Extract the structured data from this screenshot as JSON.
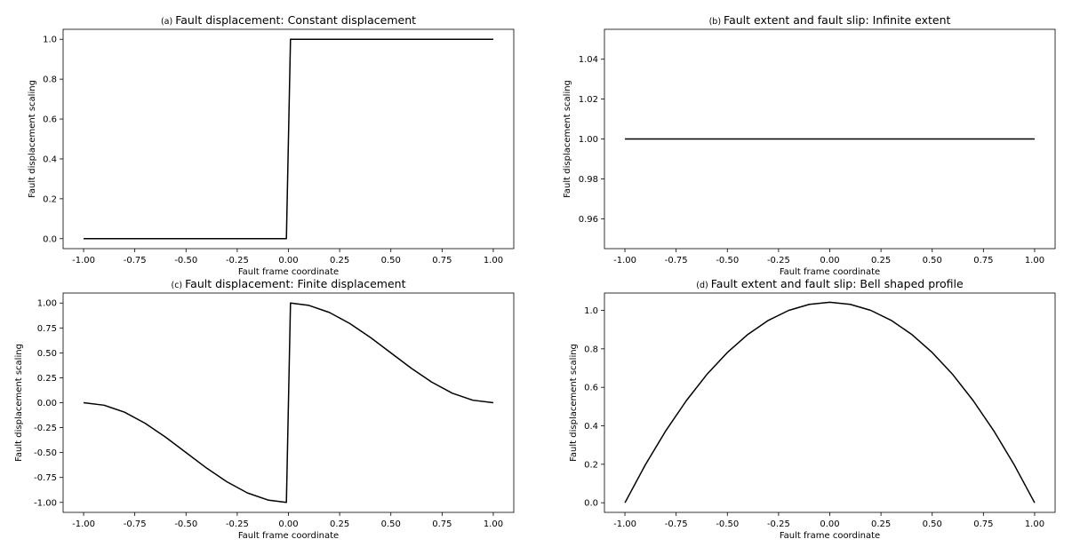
{
  "chart_data": [
    {
      "panel": "a",
      "type": "line",
      "title_letter": "(a)",
      "title": "Fault displacement: Constant displacement",
      "xlabel": "Fault frame coordinate",
      "ylabel": "Fault displacement scaling",
      "xlim": [
        -1.1,
        1.1
      ],
      "ylim": [
        -0.05,
        1.05
      ],
      "xticks": [
        "-1.00",
        "-0.75",
        "-0.50",
        "-0.25",
        "0.00",
        "0.25",
        "0.50",
        "0.75",
        "1.00"
      ],
      "yticks": [
        "0.0",
        "0.2",
        "0.4",
        "0.6",
        "0.8",
        "1.0"
      ],
      "series": [
        {
          "color": "#000000",
          "points": [
            [
              -1.0,
              0.0
            ],
            [
              -0.01,
              0.0
            ],
            [
              0.01,
              1.0
            ],
            [
              1.0,
              1.0
            ]
          ]
        }
      ]
    },
    {
      "panel": "b",
      "type": "line",
      "title_letter": "(b)",
      "title": "Fault extent and fault slip: Infinite extent",
      "xlabel": "Fault frame coordinate",
      "ylabel": "Fault displacement scaling",
      "xlim": [
        -1.1,
        1.1
      ],
      "ylim": [
        0.945,
        1.055
      ],
      "xticks": [
        "-1.00",
        "-0.75",
        "-0.50",
        "-0.25",
        "0.00",
        "0.25",
        "0.50",
        "0.75",
        "1.00"
      ],
      "yticks": [
        "0.96",
        "0.98",
        "1.00",
        "1.02",
        "1.04"
      ],
      "series": [
        {
          "color": "#000000",
          "points": [
            [
              -1.0,
              1.0
            ],
            [
              1.0,
              1.0
            ]
          ]
        }
      ]
    },
    {
      "panel": "c",
      "type": "line",
      "title_letter": "(c)",
      "title": "Fault displacement: Finite displacement",
      "xlabel": "Fault frame coordinate",
      "ylabel": "Fault displacement scaling",
      "xlim": [
        -1.1,
        1.1
      ],
      "ylim": [
        -1.1,
        1.1
      ],
      "xticks": [
        "-1.00",
        "-0.75",
        "-0.50",
        "-0.25",
        "0.00",
        "0.25",
        "0.50",
        "0.75",
        "1.00"
      ],
      "yticks": [
        "-1.00",
        "-0.75",
        "-0.50",
        "-0.25",
        "0.00",
        "0.25",
        "0.50",
        "0.75",
        "1.00"
      ],
      "series": [
        {
          "color": "#000000",
          "points": [
            [
              -1.0,
              0.0
            ],
            [
              -0.9,
              -0.025
            ],
            [
              -0.8,
              -0.095
            ],
            [
              -0.7,
              -0.206
            ],
            [
              -0.6,
              -0.345
            ],
            [
              -0.5,
              -0.5
            ],
            [
              -0.4,
              -0.655
            ],
            [
              -0.3,
              -0.794
            ],
            [
              -0.2,
              -0.905
            ],
            [
              -0.1,
              -0.976
            ],
            [
              -0.01,
              -1.0
            ],
            [
              0.01,
              1.0
            ],
            [
              0.1,
              0.976
            ],
            [
              0.2,
              0.905
            ],
            [
              0.3,
              0.794
            ],
            [
              0.4,
              0.655
            ],
            [
              0.5,
              0.5
            ],
            [
              0.6,
              0.345
            ],
            [
              0.7,
              0.206
            ],
            [
              0.8,
              0.095
            ],
            [
              0.9,
              0.025
            ],
            [
              1.0,
              0.0
            ]
          ]
        }
      ]
    },
    {
      "panel": "d",
      "type": "line",
      "title_letter": "(d)",
      "title": "Fault extent and fault slip: Bell shaped profile",
      "xlabel": "Fault frame coordinate",
      "ylabel": "Fault displacement scaling",
      "xlim": [
        -1.1,
        1.1
      ],
      "ylim": [
        -0.05,
        1.09
      ],
      "xticks": [
        "-1.00",
        "-0.75",
        "-0.50",
        "-0.25",
        "0.00",
        "0.25",
        "0.50",
        "0.75",
        "1.00"
      ],
      "yticks": [
        "0.0",
        "0.2",
        "0.4",
        "0.6",
        "0.8",
        "1.0"
      ],
      "series": [
        {
          "color": "#000000",
          "points": [
            [
              -1.0,
              0.0
            ],
            [
              -0.9,
              0.198
            ],
            [
              -0.8,
              0.375
            ],
            [
              -0.7,
              0.531
            ],
            [
              -0.6,
              0.667
            ],
            [
              -0.5,
              0.781
            ],
            [
              -0.4,
              0.875
            ],
            [
              -0.3,
              0.948
            ],
            [
              -0.2,
              1.0
            ],
            [
              -0.1,
              1.031
            ],
            [
              0.0,
              1.042
            ],
            [
              0.1,
              1.031
            ],
            [
              0.2,
              1.0
            ],
            [
              0.3,
              0.948
            ],
            [
              0.4,
              0.875
            ],
            [
              0.5,
              0.781
            ],
            [
              0.6,
              0.667
            ],
            [
              0.7,
              0.531
            ],
            [
              0.8,
              0.375
            ],
            [
              0.9,
              0.198
            ],
            [
              1.0,
              0.0
            ]
          ]
        }
      ]
    }
  ]
}
